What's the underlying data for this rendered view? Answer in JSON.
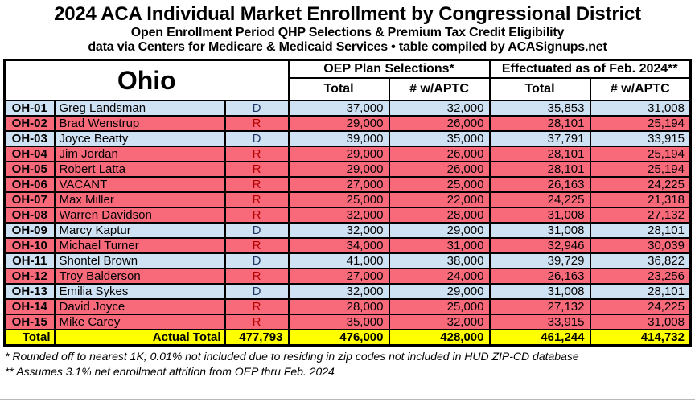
{
  "header": {
    "title": "2024 ACA Individual Market Enrollment by Congressional District",
    "subtitle1": "Open Enrollment Period QHP Selections & Premium Tax Credit Eligibility",
    "subtitle2": "data via Centers for Medicare & Medicaid Services • table compiled by ACASignups.net"
  },
  "chart_data": {
    "type": "table",
    "title": "2024 ACA Individual Market Enrollment by Congressional District",
    "state": "Ohio",
    "column_groups": [
      {
        "label": "OEP Plan Selections*",
        "columns": [
          "Total",
          "# w/APTC"
        ]
      },
      {
        "label": "Effectuated as of Feb. 2024**",
        "columns": [
          "Total",
          "# w/APTC"
        ]
      }
    ],
    "sub_headers": {
      "oep_total": "Total",
      "oep_aptc": "# w/APTC",
      "eff_total": "Total",
      "eff_aptc": "# w/APTC"
    },
    "rows": [
      {
        "district": "OH-01",
        "name": "Greg Landsman",
        "party": "D",
        "values": [
          "37,000",
          "32,000",
          "35,853",
          "31,008"
        ]
      },
      {
        "district": "OH-02",
        "name": "Brad Wenstrup",
        "party": "R",
        "values": [
          "29,000",
          "26,000",
          "28,101",
          "25,194"
        ]
      },
      {
        "district": "OH-03",
        "name": "Joyce Beatty",
        "party": "D",
        "values": [
          "39,000",
          "35,000",
          "37,791",
          "33,915"
        ]
      },
      {
        "district": "OH-04",
        "name": "Jim Jordan",
        "party": "R",
        "values": [
          "29,000",
          "26,000",
          "28,101",
          "25,194"
        ]
      },
      {
        "district": "OH-05",
        "name": "Robert Latta",
        "party": "R",
        "values": [
          "29,000",
          "26,000",
          "28,101",
          "25,194"
        ]
      },
      {
        "district": "OH-06",
        "name": "VACANT",
        "party": "R",
        "values": [
          "27,000",
          "25,000",
          "26,163",
          "24,225"
        ]
      },
      {
        "district": "OH-07",
        "name": "Max Miller",
        "party": "R",
        "values": [
          "25,000",
          "22,000",
          "24,225",
          "21,318"
        ]
      },
      {
        "district": "OH-08",
        "name": "Warren Davidson",
        "party": "R",
        "values": [
          "32,000",
          "28,000",
          "31,008",
          "27,132"
        ]
      },
      {
        "district": "OH-09",
        "name": "Marcy Kaptur",
        "party": "D",
        "values": [
          "32,000",
          "29,000",
          "31,008",
          "28,101"
        ]
      },
      {
        "district": "OH-10",
        "name": "Michael Turner",
        "party": "R",
        "values": [
          "34,000",
          "31,000",
          "32,946",
          "30,039"
        ]
      },
      {
        "district": "OH-11",
        "name": "Shontel Brown",
        "party": "D",
        "values": [
          "41,000",
          "38,000",
          "39,729",
          "36,822"
        ]
      },
      {
        "district": "OH-12",
        "name": "Troy Balderson",
        "party": "R",
        "values": [
          "27,000",
          "24,000",
          "26,163",
          "23,256"
        ]
      },
      {
        "district": "OH-13",
        "name": "Emilia Sykes",
        "party": "D",
        "values": [
          "32,000",
          "29,000",
          "31,008",
          "28,101"
        ]
      },
      {
        "district": "OH-14",
        "name": "David Joyce",
        "party": "R",
        "values": [
          "28,000",
          "25,000",
          "27,132",
          "24,225"
        ]
      },
      {
        "district": "OH-15",
        "name": "Mike Carey",
        "party": "R",
        "values": [
          "35,000",
          "32,000",
          "33,915",
          "31,008"
        ]
      }
    ],
    "total": {
      "label": "Total",
      "sub_label": "Actual Total",
      "actual_total": "477,793",
      "oep_total": "476,000",
      "oep_aptc": "428,000",
      "eff_total": "461,244",
      "eff_aptc": "414,732"
    }
  },
  "footnotes": [
    "* Rounded off to nearest 1K; 0.01% not included due to residing in zip codes not included in HUD ZIP-CD database",
    "** Assumes 3.1% net enrollment attrition from OEP thru Feb. 2024"
  ],
  "colors": {
    "dem_row": "#cfe2f3",
    "rep_row": "#f8697a",
    "total_row": "#ffff00",
    "dem_letter": "#1f3864",
    "rep_letter": "#b30000",
    "border": "#000000"
  }
}
